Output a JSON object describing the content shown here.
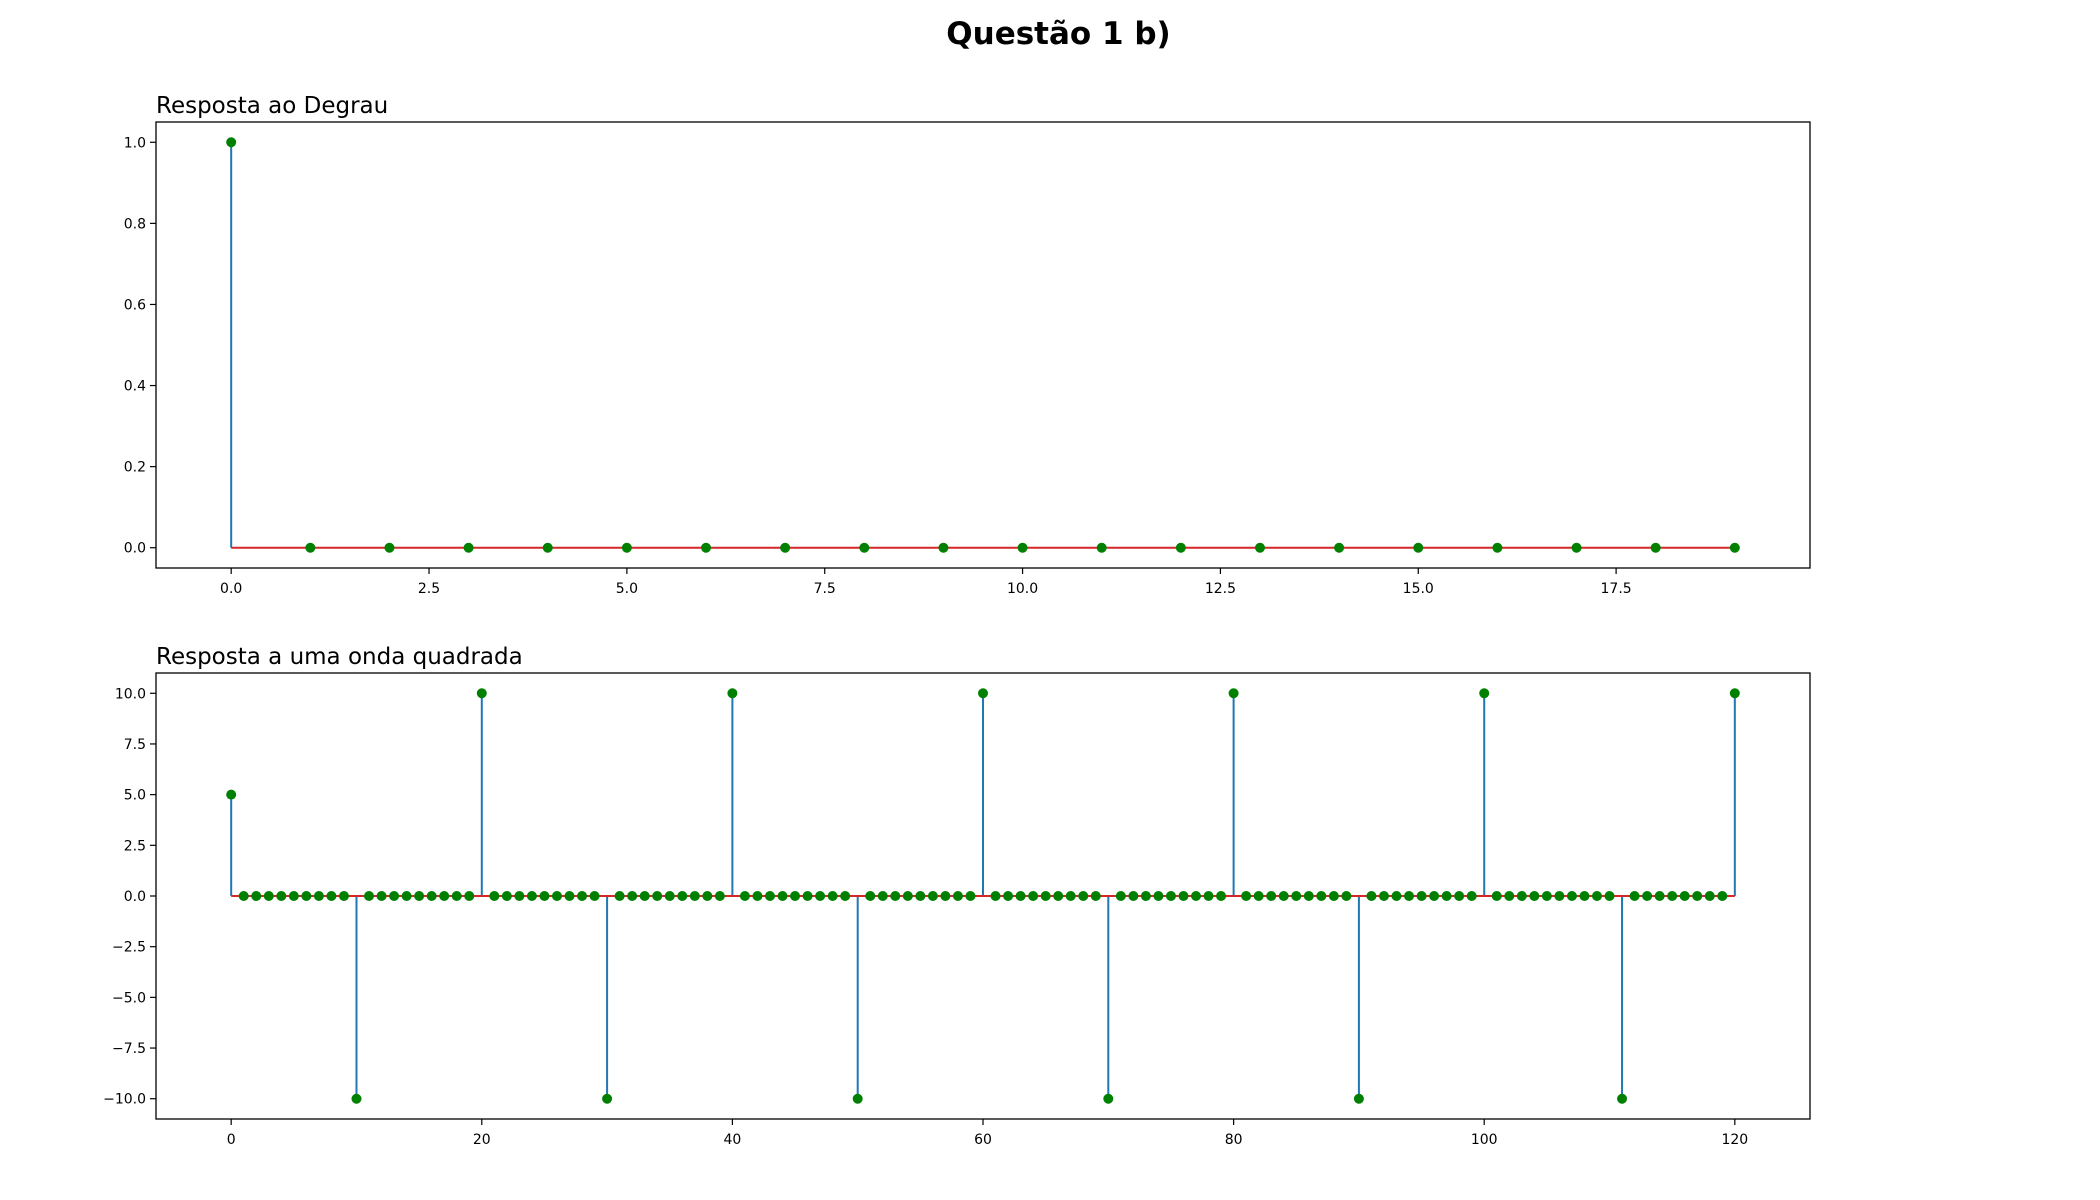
{
  "figure": {
    "title": "Questão 1 b)"
  },
  "colors": {
    "stem": "#1f77b4",
    "marker": "#008000",
    "baseline": "#d62728"
  },
  "chart_data": [
    {
      "type": "stem",
      "title": "Resposta ao Degrau",
      "xlabel": "",
      "ylabel": "",
      "xlim": [
        -0.95,
        19.95
      ],
      "ylim": [
        -0.05,
        1.05
      ],
      "xticks": [
        0.0,
        2.5,
        5.0,
        7.5,
        10.0,
        12.5,
        15.0,
        17.5
      ],
      "xtick_labels": [
        "0.0",
        "2.5",
        "5.0",
        "7.5",
        "10.0",
        "12.5",
        "15.0",
        "17.5"
      ],
      "yticks": [
        0.0,
        0.2,
        0.4,
        0.6,
        0.8,
        1.0
      ],
      "ytick_labels": [
        "0.0",
        "0.2",
        "0.4",
        "0.6",
        "0.8",
        "1.0"
      ],
      "x_start": 0,
      "values": [
        1,
        0,
        0,
        0,
        0,
        0,
        0,
        0,
        0,
        0,
        0,
        0,
        0,
        0,
        0,
        0,
        0,
        0,
        0,
        0
      ],
      "grid": false
    },
    {
      "type": "stem",
      "title": "Resposta a uma onda quadrada",
      "xlabel": "",
      "ylabel": "",
      "xlim": [
        -6,
        126
      ],
      "ylim": [
        -11,
        11
      ],
      "xticks": [
        0,
        20,
        40,
        60,
        80,
        100,
        120
      ],
      "xtick_labels": [
        "0",
        "20",
        "40",
        "60",
        "80",
        "100",
        "120"
      ],
      "yticks": [
        10.0,
        7.5,
        5.0,
        2.5,
        0.0,
        -2.5,
        -5.0,
        -7.5,
        -10.0
      ],
      "ytick_labels": [
        "10.0",
        "7.5",
        "5.0",
        "2.5",
        "0.0",
        "−2.5",
        "−5.0",
        "−7.5",
        "−10.0"
      ],
      "x_start": 0,
      "values": [
        5,
        0,
        0,
        0,
        0,
        0,
        0,
        0,
        0,
        0,
        -10,
        0,
        0,
        0,
        0,
        0,
        0,
        0,
        0,
        0,
        10,
        0,
        0,
        0,
        0,
        0,
        0,
        0,
        0,
        0,
        -10,
        0,
        0,
        0,
        0,
        0,
        0,
        0,
        0,
        0,
        10,
        0,
        0,
        0,
        0,
        0,
        0,
        0,
        0,
        0,
        -10,
        0,
        0,
        0,
        0,
        0,
        0,
        0,
        0,
        0,
        10,
        0,
        0,
        0,
        0,
        0,
        0,
        0,
        0,
        0,
        -10,
        0,
        0,
        0,
        0,
        0,
        0,
        0,
        0,
        0,
        10,
        0,
        0,
        0,
        0,
        0,
        0,
        0,
        0,
        0,
        -10,
        0,
        0,
        0,
        0,
        0,
        0,
        0,
        0,
        0,
        10,
        0,
        0,
        0,
        0,
        0,
        0,
        0,
        0,
        0,
        0,
        -10,
        0,
        0,
        0,
        0,
        0,
        0,
        0,
        0,
        10
      ],
      "grid": false
    }
  ]
}
